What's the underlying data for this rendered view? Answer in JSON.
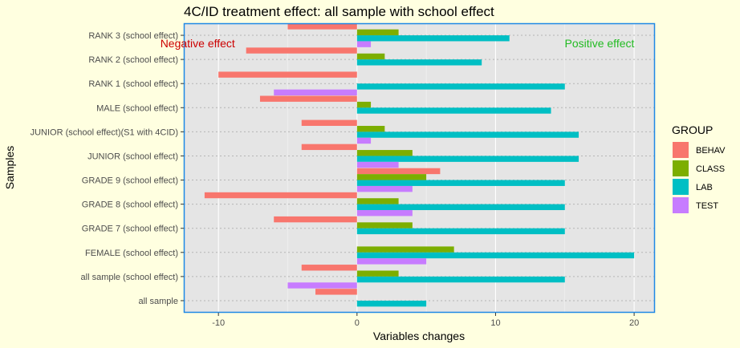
{
  "colors": {
    "background": "#ffffe0",
    "panel": "#e5e5e5",
    "panel_border": "#1e88e5",
    "grid_major": "#ffffff",
    "negative_annotation": "#cc0000",
    "positive_annotation": "#22bb22",
    "BEHAV": "#f8766d",
    "CLASS": "#7cae00",
    "LAB": "#00bfc4",
    "TEST": "#c77cff"
  },
  "chart_data": {
    "type": "bar",
    "orientation": "horizontal",
    "title": "4C/ID treatment effect: all sample with school effect",
    "xlabel": "Variables changes",
    "ylabel": "Samples",
    "xlim": [
      -12.5,
      21.5
    ],
    "xticks": [
      -10,
      0,
      10,
      20
    ],
    "grid": true,
    "legend": {
      "title": "GROUP",
      "position": "right",
      "entries": [
        "BEHAV",
        "CLASS",
        "LAB",
        "TEST"
      ]
    },
    "annotations": [
      {
        "text": "Negative effect",
        "x": -11.5,
        "y": "RANK 2 (school effect)",
        "color_key": "negative_annotation"
      },
      {
        "text": "Positive effect",
        "x": 17.5,
        "y": "RANK 2 (school effect)",
        "color_key": "positive_annotation"
      }
    ],
    "categories": [
      "all sample",
      "all sample (school effect)",
      "FEMALE (school effect)",
      "GRADE 7 (school effect)",
      "GRADE 8 (school effect)",
      "GRADE 9 (school effect)",
      "JUNIOR (school effect)",
      "JUNIOR (school effect)(S1 with 4CID)",
      "MALE (school effect)",
      "RANK 1 (school effect)",
      "RANK 2 (school effect)",
      "RANK 3 (school effect)"
    ],
    "series": [
      {
        "name": "BEHAV",
        "values": [
          -3,
          -4,
          null,
          -6,
          -11,
          6,
          -4,
          -4,
          -7,
          -10,
          -8,
          -5
        ]
      },
      {
        "name": "CLASS",
        "values": [
          null,
          3,
          7,
          4,
          3,
          5,
          4,
          2,
          1,
          null,
          2,
          3
        ]
      },
      {
        "name": "LAB",
        "values": [
          5,
          15,
          20,
          15,
          15,
          15,
          16,
          16,
          14,
          15,
          9,
          11
        ]
      },
      {
        "name": "TEST",
        "values": [
          null,
          -5,
          5,
          null,
          4,
          4,
          3,
          1,
          null,
          -6,
          null,
          1
        ]
      }
    ]
  }
}
